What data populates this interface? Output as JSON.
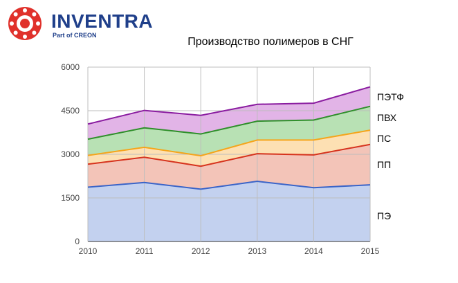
{
  "logo": {
    "name": "INVENTRA",
    "tagline": "Part of CREON",
    "colors": {
      "brand_blue": "#1f3f8a",
      "brand_red": "#e0312b"
    }
  },
  "chart_data": {
    "type": "area",
    "title": "Производство полимеров в СНГ",
    "stacked": true,
    "x": [
      "2010",
      "2011",
      "2012",
      "2013",
      "2014",
      "2015"
    ],
    "ylim": [
      0,
      6000
    ],
    "yticks": [
      "0",
      "1500",
      "3000",
      "4500",
      "6000"
    ],
    "grid": true,
    "legend": "right, labels beside series",
    "series": [
      {
        "name": "ПЭ",
        "line": "#3a64c8",
        "fill": "#c3d1ef",
        "values": [
          1870,
          2030,
          1800,
          2070,
          1850,
          1950
        ]
      },
      {
        "name": "ПП",
        "line": "#d6331d",
        "fill": "#f3c4b8",
        "values": [
          790,
          870,
          790,
          950,
          1130,
          1390
        ]
      },
      {
        "name": "ПС",
        "line": "#f5a51b",
        "fill": "#fde0b3",
        "values": [
          300,
          340,
          360,
          470,
          510,
          490
        ]
      },
      {
        "name": "ПВХ",
        "line": "#2f8f2b",
        "fill": "#b8e1b4",
        "values": [
          560,
          670,
          750,
          650,
          690,
          820
        ]
      },
      {
        "name": "ПЭТФ",
        "line": "#8a1ca0",
        "fill": "#e2b4e7",
        "values": [
          520,
          600,
          640,
          580,
          580,
          670
        ]
      }
    ]
  }
}
